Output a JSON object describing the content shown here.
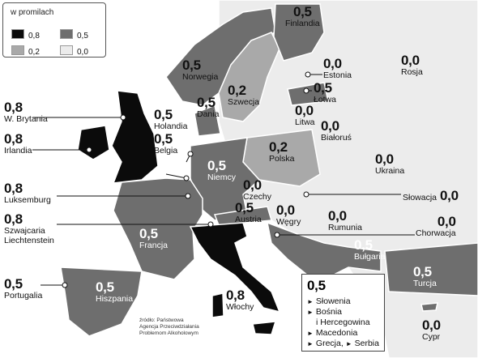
{
  "colors": {
    "v08": "#0b0b0b",
    "v05": "#6e6e6e",
    "v02": "#a9a9a9",
    "v00": "#ececec",
    "sea": "#ffffff",
    "border": "#ffffff"
  },
  "legend": {
    "title": "w promilach",
    "items": [
      {
        "value": "0,8",
        "color": "#0b0b0b"
      },
      {
        "value": "0,5",
        "color": "#6e6e6e"
      },
      {
        "value": "0,2",
        "color": "#a9a9a9"
      },
      {
        "value": "0,0",
        "color": "#ececec"
      }
    ]
  },
  "countries": [
    {
      "name": "Finlandia",
      "value": "0,5"
    },
    {
      "name": "Norwegia",
      "value": "0,5"
    },
    {
      "name": "Szwecja",
      "value": "0,2"
    },
    {
      "name": "Estonia",
      "value": "0,0"
    },
    {
      "name": "Rosja",
      "value": "0,0"
    },
    {
      "name": "Łotwa",
      "value": "0,5"
    },
    {
      "name": "Litwa",
      "value": "0,0"
    },
    {
      "name": "Dania",
      "value": "0,5"
    },
    {
      "name": "W. Brytania",
      "value": "0,8"
    },
    {
      "name": "Irlandia",
      "value": "0,8"
    },
    {
      "name": "Holandia",
      "value": "0,5"
    },
    {
      "name": "Belgia",
      "value": "0,5"
    },
    {
      "name": "Niemcy",
      "value": "0,5"
    },
    {
      "name": "Białoruś",
      "value": "0,0"
    },
    {
      "name": "Polska",
      "value": "0,2"
    },
    {
      "name": "Ukraina",
      "value": "0,0"
    },
    {
      "name": "Luksemburg",
      "value": "0,8"
    },
    {
      "name": "Czechy",
      "value": "0,0"
    },
    {
      "name": "Słowacja",
      "value": "0,0"
    },
    {
      "name": "Szwajcaria",
      "value": "0,8"
    },
    {
      "name": "Liechtenstein",
      "value": ""
    },
    {
      "name": "Austria",
      "value": "0,5"
    },
    {
      "name": "Węgry",
      "value": "0,0"
    },
    {
      "name": "Rumunia",
      "value": "0,0"
    },
    {
      "name": "Chorwacja",
      "value": "0,0"
    },
    {
      "name": "Francja",
      "value": "0,5"
    },
    {
      "name": "Bułgaria",
      "value": "0,5"
    },
    {
      "name": "Portugalia",
      "value": "0,5"
    },
    {
      "name": "Hiszpania",
      "value": "0,5"
    },
    {
      "name": "Włochy",
      "value": "0,8"
    },
    {
      "name": "Turcja",
      "value": "0,5"
    },
    {
      "name": "Cypr",
      "value": "0,0"
    }
  ],
  "balkan_box": {
    "value": "0,5",
    "items": [
      "Słowenia",
      "Bośnia",
      "i Hercegowina",
      "Macedonia",
      "Grecja,",
      "Serbia"
    ]
  },
  "source": [
    "źródło: Państwowa",
    "Agencja Przeciwdziałania",
    "Problemom Alkoholowym"
  ]
}
